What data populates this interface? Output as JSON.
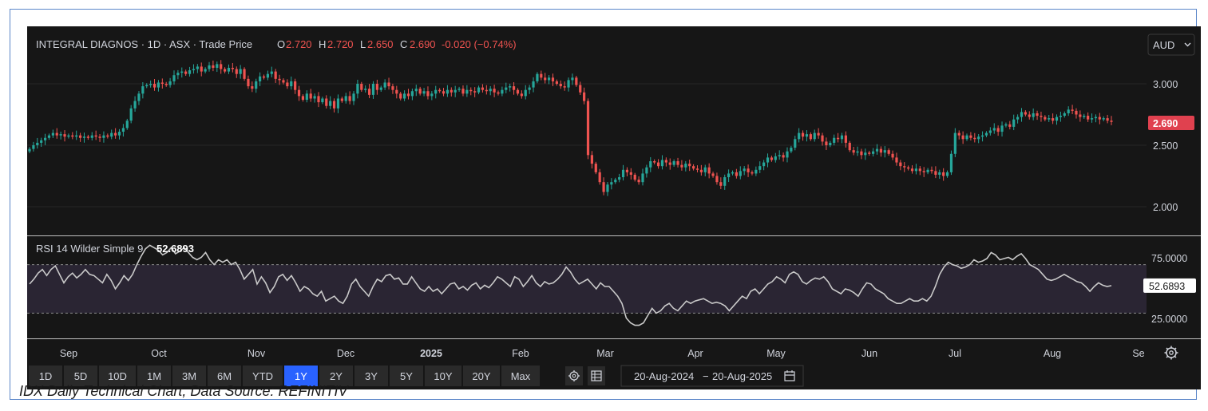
{
  "header": {
    "instrument": "INTEGRAL DIAGNOS · 1D · ASX · Trade Price",
    "o_label": "O",
    "o_value": "2.720",
    "h_label": "H",
    "h_value": "2.720",
    "l_label": "L",
    "l_value": "2.650",
    "c_label": "C",
    "c_value": "2.690",
    "change": "-0.020 (−0.74%)"
  },
  "currency": {
    "label": "AUD",
    "icon": "chevron-down-icon"
  },
  "price_axis": {
    "ticks": [
      "3.000",
      "2.500",
      "2.000"
    ],
    "last_price": "2.690",
    "last_price_color": "#e0414f"
  },
  "rsi": {
    "label": "RSI 14 Wilder Simple 9",
    "value": "52.6893",
    "ticks": [
      "75.0000",
      "25.0000"
    ],
    "band_upper": 70,
    "band_lower": 30
  },
  "time_axis": [
    "Sep",
    "Oct",
    "Nov",
    "Dec",
    "2025",
    "Feb",
    "Mar",
    "Apr",
    "May",
    "Jun",
    "Jul",
    "Aug",
    "Se"
  ],
  "settings_icon": "gear-icon",
  "toolbar": {
    "ranges": [
      "1D",
      "5D",
      "10D",
      "1M",
      "3M",
      "6M",
      "YTD",
      "1Y",
      "2Y",
      "3Y",
      "5Y",
      "10Y",
      "20Y",
      "Max"
    ],
    "active_range": "1Y",
    "settings_icon": "gear-icon",
    "table_icon": "table-icon",
    "date_from": "20-Aug-2024",
    "date_sep": "−",
    "date_to": "20-Aug-2025",
    "calendar_icon": "calendar-icon"
  },
  "colors": {
    "up": "#26a69a",
    "down": "#ef5350",
    "background": "#161616",
    "accent": "#2962ff"
  },
  "caption": "IDX Daily Technical Chart, Data Source: REFINITIV",
  "chart_data": [
    {
      "type": "candlestick",
      "x_range": [
        "20-Aug-2024",
        "20-Aug-2025"
      ],
      "ylim": [
        1.75,
        3.25
      ],
      "close": [
        2.47,
        2.5,
        2.52,
        2.54,
        2.56,
        2.58,
        2.6,
        2.58,
        2.59,
        2.57,
        2.58,
        2.57,
        2.58,
        2.56,
        2.57,
        2.56,
        2.58,
        2.57,
        2.56,
        2.58,
        2.57,
        2.6,
        2.58,
        2.61,
        2.64,
        2.7,
        2.8,
        2.86,
        2.92,
        2.98,
        2.99,
        3.0,
        2.97,
        3.01,
        3.0,
        2.99,
        3.02,
        3.07,
        3.09,
        3.1,
        3.08,
        3.11,
        3.12,
        3.14,
        3.1,
        3.12,
        3.15,
        3.13,
        3.16,
        3.12,
        3.1,
        3.13,
        3.12,
        3.08,
        3.12,
        3.04,
        2.98,
        2.96,
        3.02,
        3.06,
        3.05,
        3.08,
        3.1,
        3.04,
        3.03,
        3.01,
        2.98,
        3.02,
        2.95,
        2.9,
        2.87,
        2.92,
        2.88,
        2.9,
        2.85,
        2.88,
        2.82,
        2.86,
        2.8,
        2.88,
        2.86,
        2.9,
        2.86,
        2.92,
        3.0,
        2.95,
        2.96,
        2.91,
        3.0,
        2.95,
        2.97,
        3.01,
        2.98,
        2.95,
        2.92,
        2.88,
        2.92,
        2.9,
        2.94,
        2.96,
        2.92,
        2.94,
        2.9,
        2.92,
        2.95,
        2.94,
        2.92,
        2.95,
        2.93,
        2.95,
        2.96,
        2.92,
        2.95,
        2.94,
        2.93,
        2.97,
        2.95,
        2.94,
        2.96,
        2.93,
        2.92,
        2.95,
        2.97,
        2.98,
        2.95,
        2.92,
        2.9,
        2.95,
        2.97,
        3.02,
        3.08,
        3.05,
        3.03,
        3.05,
        3.02,
        3.0,
        2.98,
        2.97,
        3.03,
        3.05,
        2.99,
        2.93,
        2.86,
        2.42,
        2.35,
        2.28,
        2.2,
        2.12,
        2.18,
        2.2,
        2.22,
        2.24,
        2.3,
        2.28,
        2.26,
        2.22,
        2.2,
        2.27,
        2.32,
        2.37,
        2.36,
        2.33,
        2.38,
        2.36,
        2.34,
        2.37,
        2.34,
        2.32,
        2.35,
        2.33,
        2.31,
        2.3,
        2.28,
        2.32,
        2.27,
        2.25,
        2.2,
        2.17,
        2.24,
        2.27,
        2.28,
        2.25,
        2.29,
        2.31,
        2.28,
        2.27,
        2.3,
        2.33,
        2.36,
        2.4,
        2.38,
        2.41,
        2.42,
        2.4,
        2.45,
        2.48,
        2.55,
        2.6,
        2.57,
        2.59,
        2.55,
        2.6,
        2.58,
        2.53,
        2.5,
        2.52,
        2.56,
        2.55,
        2.58,
        2.52,
        2.46,
        2.44,
        2.45,
        2.42,
        2.44,
        2.43,
        2.45,
        2.47,
        2.44,
        2.46,
        2.43,
        2.4,
        2.36,
        2.33,
        2.32,
        2.31,
        2.29,
        2.31,
        2.29,
        2.28,
        2.3,
        2.29,
        2.26,
        2.28,
        2.25,
        2.28,
        2.43,
        2.6,
        2.58,
        2.55,
        2.58,
        2.56,
        2.55,
        2.57,
        2.58,
        2.6,
        2.62,
        2.64,
        2.61,
        2.66,
        2.67,
        2.65,
        2.71,
        2.73,
        2.77,
        2.75,
        2.73,
        2.76,
        2.74,
        2.73,
        2.71,
        2.72,
        2.7,
        2.73,
        2.74,
        2.76,
        2.79,
        2.78,
        2.75,
        2.73,
        2.74,
        2.71,
        2.72,
        2.73,
        2.71,
        2.72,
        2.7,
        2.69
      ]
    },
    {
      "type": "line",
      "name": "RSI 14 Wilder Simple 9",
      "ylim": [
        10,
        95
      ],
      "values": [
        54,
        58,
        63,
        66,
        61,
        66,
        69,
        62,
        55,
        60,
        63,
        59,
        62,
        66,
        62,
        61,
        58,
        55,
        62,
        57,
        50,
        55,
        61,
        57,
        62,
        70,
        77,
        83,
        86,
        84,
        82,
        78,
        80,
        84,
        79,
        81,
        84,
        80,
        76,
        74,
        76,
        80,
        74,
        70,
        74,
        72,
        74,
        70,
        72,
        66,
        58,
        62,
        66,
        54,
        60,
        55,
        47,
        52,
        60,
        62,
        57,
        61,
        55,
        48,
        52,
        50,
        46,
        44,
        48,
        40,
        42,
        44,
        40,
        38,
        44,
        54,
        58,
        52,
        48,
        44,
        52,
        58,
        56,
        61,
        62,
        58,
        59,
        54,
        54,
        60,
        55,
        50,
        48,
        52,
        48,
        50,
        46,
        50,
        54,
        55,
        50,
        52,
        49,
        53,
        55,
        50,
        53,
        51,
        55,
        60,
        58,
        55,
        52,
        60,
        58,
        52,
        56,
        61,
        55,
        52,
        56,
        54,
        55,
        58,
        62,
        68,
        64,
        58,
        54,
        56,
        58,
        54,
        50,
        55,
        52,
        52,
        48,
        44,
        38,
        26,
        22,
        20,
        20,
        22,
        28,
        34,
        30,
        32,
        36,
        38,
        34,
        32,
        36,
        40,
        38,
        40,
        41,
        42,
        40,
        38,
        39,
        38,
        36,
        32,
        36,
        40,
        44,
        42,
        48,
        50,
        46,
        50,
        54,
        56,
        60,
        58,
        55,
        62,
        64,
        62,
        56,
        54,
        57,
        59,
        58,
        60,
        56,
        50,
        48,
        46,
        50,
        49,
        47,
        44,
        50,
        55,
        54,
        50,
        48,
        46,
        42,
        40,
        38,
        38,
        40,
        42,
        40,
        40,
        42,
        40,
        44,
        52,
        62,
        68,
        72,
        70,
        69,
        67,
        68,
        70,
        74,
        72,
        73,
        75,
        80,
        78,
        74,
        75,
        76,
        74,
        77,
        79,
        75,
        70,
        68,
        66,
        62,
        58,
        57,
        58,
        60,
        62,
        60,
        58,
        56,
        55,
        52,
        48,
        52,
        55,
        53,
        52,
        52.6893
      ]
    }
  ]
}
